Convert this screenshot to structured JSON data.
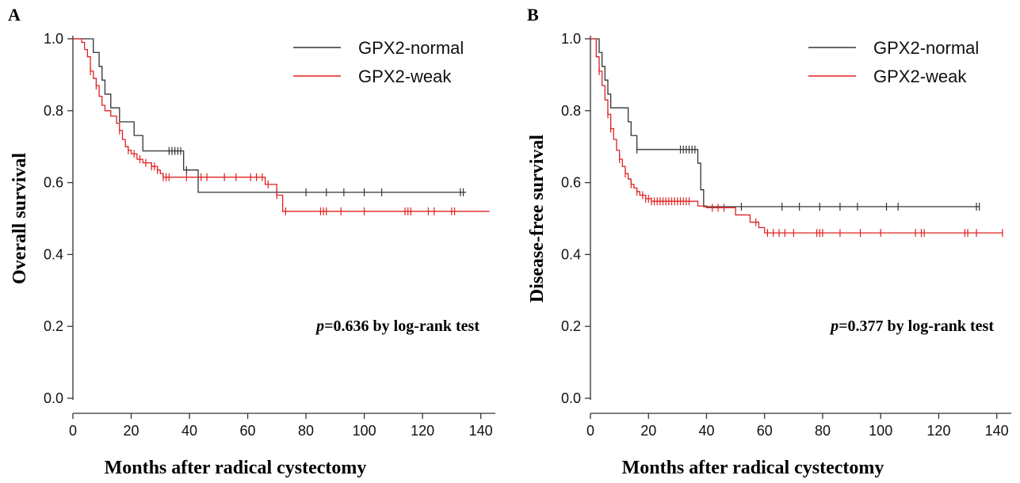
{
  "chart_data": [
    {
      "type": "line",
      "panel_label": "A",
      "xlabel": "Months after radical cystectomy",
      "ylabel": "Overall survival",
      "xlim": [
        0,
        145
      ],
      "ylim": [
        0.0,
        1.0
      ],
      "xticks": [
        "0",
        "20",
        "40",
        "60",
        "80",
        "100",
        "120",
        "140"
      ],
      "yticks": [
        "0.0",
        "0.2",
        "0.4",
        "0.6",
        "0.8",
        "1.0"
      ],
      "legend_position": "top-right",
      "annotation": {
        "p": "p",
        "text": "=0.636 by log-rank test"
      },
      "series": [
        {
          "name": "GPX2-normal",
          "color": "#333333",
          "steps": [
            [
              0,
              1.0
            ],
            [
              7,
              0.962
            ],
            [
              9,
              0.923
            ],
            [
              10,
              0.885
            ],
            [
              11,
              0.846
            ],
            [
              13,
              0.808
            ],
            [
              16,
              0.769
            ],
            [
              21,
              0.731
            ],
            [
              24,
              0.688
            ],
            [
              38,
              0.635
            ],
            [
              43,
              0.573
            ],
            [
              135,
              0.573
            ]
          ],
          "censor": [
            33,
            34,
            35,
            36,
            37,
            39,
            70,
            80,
            87,
            93,
            100,
            106,
            133,
            134
          ]
        },
        {
          "name": "GPX2-weak",
          "color": "#e02020",
          "steps": [
            [
              0,
              1.0
            ],
            [
              3,
              0.99
            ],
            [
              4,
              0.97
            ],
            [
              5,
              0.95
            ],
            [
              6,
              0.91
            ],
            [
              7,
              0.89
            ],
            [
              8,
              0.87
            ],
            [
              9,
              0.84
            ],
            [
              10,
              0.815
            ],
            [
              11,
              0.8
            ],
            [
              13,
              0.785
            ],
            [
              15,
              0.765
            ],
            [
              16,
              0.745
            ],
            [
              17,
              0.72
            ],
            [
              18,
              0.7
            ],
            [
              19,
              0.69
            ],
            [
              20,
              0.68
            ],
            [
              22,
              0.665
            ],
            [
              24,
              0.655
            ],
            [
              27,
              0.645
            ],
            [
              29,
              0.635
            ],
            [
              30,
              0.625
            ],
            [
              31,
              0.615
            ],
            [
              66,
              0.595
            ],
            [
              70,
              0.565
            ],
            [
              72,
              0.52
            ],
            [
              143,
              0.52
            ]
          ],
          "censor": [
            6,
            8,
            16,
            19,
            21,
            23,
            25,
            27,
            28,
            29,
            31,
            32,
            33,
            39,
            44,
            46,
            52,
            56,
            61,
            63,
            65,
            67,
            70,
            73,
            85,
            86,
            87,
            92,
            100,
            114,
            115,
            116,
            122,
            124,
            130,
            131
          ]
        }
      ]
    },
    {
      "type": "line",
      "panel_label": "B",
      "xlabel": "Months after radical cystectomy",
      "ylabel": "Disease-free survival",
      "xlim": [
        0,
        145
      ],
      "ylim": [
        0.0,
        1.0
      ],
      "xticks": [
        "0",
        "20",
        "40",
        "60",
        "80",
        "100",
        "120",
        "140"
      ],
      "yticks": [
        "0.0",
        "0.2",
        "0.4",
        "0.6",
        "0.8",
        "1.0"
      ],
      "legend_position": "top-right",
      "annotation": {
        "p": "p",
        "text": "=0.377 by log-rank test"
      },
      "series": [
        {
          "name": "GPX2-normal",
          "color": "#333333",
          "steps": [
            [
              0,
              1.0
            ],
            [
              3,
              0.962
            ],
            [
              4,
              0.923
            ],
            [
              5,
              0.885
            ],
            [
              6,
              0.846
            ],
            [
              7,
              0.808
            ],
            [
              13,
              0.769
            ],
            [
              14,
              0.731
            ],
            [
              16,
              0.692
            ],
            [
              37,
              0.654
            ],
            [
              38,
              0.58
            ],
            [
              39,
              0.533
            ],
            [
              134,
              0.533
            ]
          ],
          "censor": [
            16,
            31,
            32,
            33,
            34,
            35,
            36,
            52,
            66,
            72,
            79,
            86,
            92,
            102,
            106,
            133,
            134
          ]
        },
        {
          "name": "GPX2-weak",
          "color": "#e02020",
          "steps": [
            [
              0,
              1.0
            ],
            [
              2,
              0.95
            ],
            [
              3,
              0.91
            ],
            [
              4,
              0.87
            ],
            [
              5,
              0.83
            ],
            [
              6,
              0.79
            ],
            [
              7,
              0.75
            ],
            [
              8,
              0.72
            ],
            [
              9,
              0.69
            ],
            [
              10,
              0.665
            ],
            [
              11,
              0.645
            ],
            [
              12,
              0.625
            ],
            [
              13,
              0.61
            ],
            [
              14,
              0.595
            ],
            [
              15,
              0.585
            ],
            [
              16,
              0.575
            ],
            [
              17,
              0.565
            ],
            [
              19,
              0.555
            ],
            [
              21,
              0.548
            ],
            [
              37,
              0.535
            ],
            [
              40,
              0.53
            ],
            [
              50,
              0.51
            ],
            [
              55,
              0.49
            ],
            [
              58,
              0.475
            ],
            [
              60,
              0.46
            ],
            [
              142,
              0.46
            ]
          ],
          "censor": [
            3,
            6,
            7,
            10,
            12,
            14,
            16,
            18,
            19,
            20,
            21,
            22,
            23,
            24,
            25,
            26,
            27,
            28,
            29,
            30,
            31,
            32,
            33,
            34,
            42,
            44,
            46,
            57,
            61,
            63,
            65,
            67,
            70,
            78,
            79,
            80,
            86,
            93,
            100,
            112,
            114,
            115,
            129,
            130,
            133,
            142
          ]
        }
      ]
    }
  ]
}
